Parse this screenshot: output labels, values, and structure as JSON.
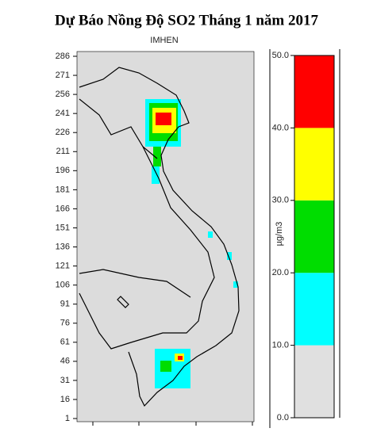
{
  "header": {
    "title": "Dự Báo Nồng Độ SO2 Tháng 1 năm 2017",
    "subtitle": "IMHEN"
  },
  "map": {
    "ylim": [
      1,
      286
    ],
    "yticks": [
      1,
      16,
      31,
      46,
      61,
      76,
      91,
      106,
      121,
      136,
      151,
      166,
      181,
      196,
      211,
      226,
      241,
      256,
      271,
      286
    ]
  },
  "colorbar": {
    "label": "µg/m3",
    "lim": [
      0,
      50
    ],
    "ticks": [
      {
        "value": 0,
        "label": "0.0"
      },
      {
        "value": 10,
        "label": "10.0"
      },
      {
        "value": 20,
        "label": "20.0"
      },
      {
        "value": 30,
        "label": "30.0"
      },
      {
        "value": 40,
        "label": "40.0"
      },
      {
        "value": 50,
        "label": "50.0"
      }
    ],
    "colors": [
      "#e0e0e0",
      "#00ffff",
      "#00dd00",
      "#ffff00",
      "#ff0000"
    ]
  }
}
